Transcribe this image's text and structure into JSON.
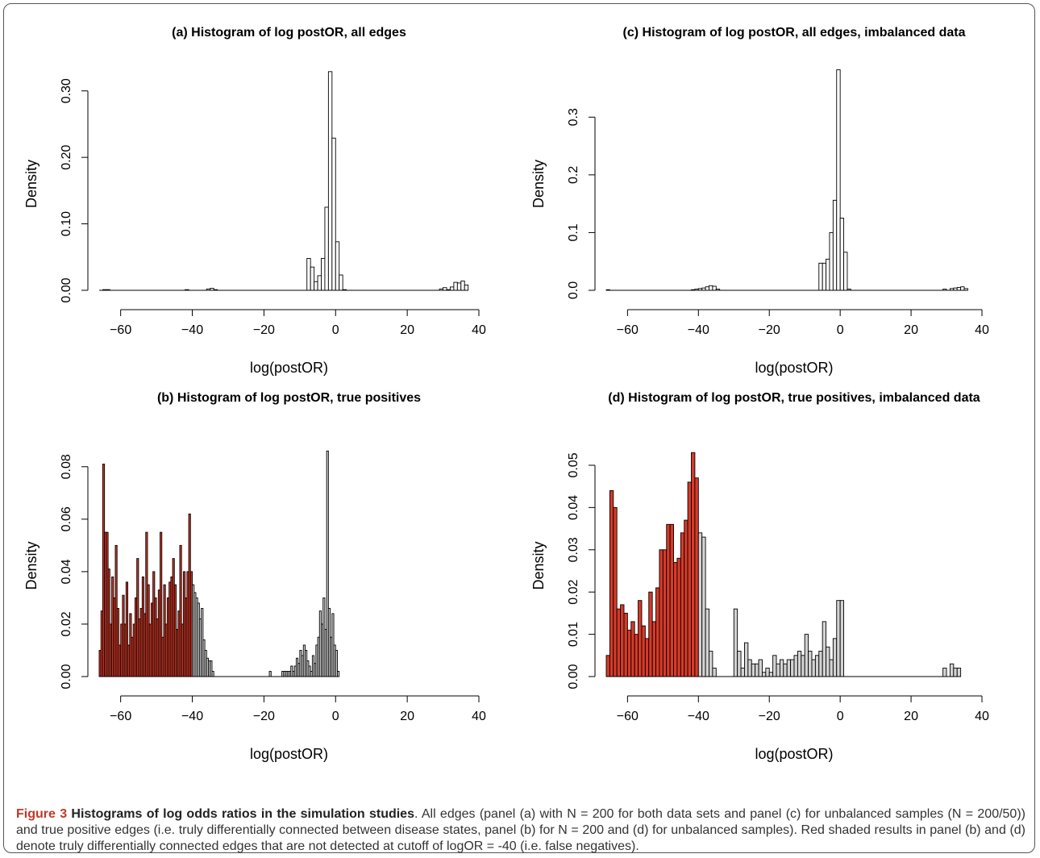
{
  "caption": {
    "label": "Figure 3",
    "title": "Histograms of log odds ratios in the simulation studies",
    "text": ". All edges (panel (a) with N = 200 for both data sets and panel (c) for unbalanced samples (N = 200/50)) and true positive edges (i.e. truly differentially connected between disease states, panel (b) for N = 200 and (d) for unbalanced samples). Red shaded results in panel (b) and (d) denote truly differentially connected edges that are not detected at cutoff of logOR = -40 (i.e. false negatives)."
  },
  "colors": {
    "red": "#d83a28",
    "grey": "#d3d3d3",
    "white": "#ffffff",
    "stroke": "#000000"
  },
  "chart_data": [
    {
      "id": "a",
      "type": "bar",
      "title": "(a) Histogram of log postOR, all edges",
      "xlabel": "log(postOR)",
      "ylabel": "Density",
      "xlim": [
        -66,
        40
      ],
      "ylim": [
        0,
        0.33
      ],
      "xticks": [
        "−60",
        "−40",
        "−20",
        "0",
        "20",
        "40"
      ],
      "xtick_values": [
        -60,
        -40,
        -20,
        0,
        20,
        40
      ],
      "yticks": [
        "0.00",
        "0.10",
        "0.20",
        "0.30"
      ],
      "ytick_values": [
        0,
        0.1,
        0.2,
        0.3
      ],
      "bin_width": 1,
      "bins": [
        {
          "x": -66,
          "y": 0
        },
        {
          "x": -65,
          "y": 0.001
        },
        {
          "x": -64,
          "y": 0.001
        },
        {
          "x": -42,
          "y": 0.001
        },
        {
          "x": -36,
          "y": 0.002
        },
        {
          "x": -35,
          "y": 0.003
        },
        {
          "x": -34,
          "y": 0.001
        },
        {
          "x": -8,
          "y": 0.048
        },
        {
          "x": -7,
          "y": 0.035
        },
        {
          "x": -6,
          "y": 0.013
        },
        {
          "x": -5,
          "y": 0.022
        },
        {
          "x": -4,
          "y": 0.048
        },
        {
          "x": -3,
          "y": 0.125
        },
        {
          "x": -2,
          "y": 0.329
        },
        {
          "x": -1,
          "y": 0.229
        },
        {
          "x": 0,
          "y": 0.073
        },
        {
          "x": 1,
          "y": 0.023
        },
        {
          "x": 2,
          "y": 0.001
        },
        {
          "x": 29,
          "y": 0.002
        },
        {
          "x": 30,
          "y": 0.004
        },
        {
          "x": 31,
          "y": 0.001
        },
        {
          "x": 32,
          "y": 0.005
        },
        {
          "x": 33,
          "y": 0.012
        },
        {
          "x": 34,
          "y": 0.011
        },
        {
          "x": 35,
          "y": 0.014
        },
        {
          "x": 36,
          "y": 0.008
        }
      ]
    },
    {
      "id": "c",
      "type": "bar",
      "title": "(c) Histogram of log postOR, all edges, imbalanced data",
      "xlabel": "log(postOR)",
      "ylabel": "Density",
      "xlim": [
        -66,
        40
      ],
      "ylim": [
        0,
        0.38
      ],
      "xticks": [
        "−60",
        "−40",
        "−20",
        "0",
        "20",
        "40"
      ],
      "xtick_values": [
        -60,
        -40,
        -20,
        0,
        20,
        40
      ],
      "yticks": [
        "0.0",
        "0.1",
        "0.2",
        "0.3"
      ],
      "ytick_values": [
        0,
        0.1,
        0.2,
        0.3
      ],
      "bin_width": 1,
      "bins": [
        {
          "x": -66,
          "y": 0.001
        },
        {
          "x": -42,
          "y": 0.001
        },
        {
          "x": -41,
          "y": 0.002
        },
        {
          "x": -40,
          "y": 0.003
        },
        {
          "x": -39,
          "y": 0.004
        },
        {
          "x": -38,
          "y": 0.006
        },
        {
          "x": -37,
          "y": 0.008
        },
        {
          "x": -36,
          "y": 0.007
        },
        {
          "x": -35,
          "y": 0.002
        },
        {
          "x": -6,
          "y": 0.047
        },
        {
          "x": -5,
          "y": 0.047
        },
        {
          "x": -4,
          "y": 0.054
        },
        {
          "x": -3,
          "y": 0.1
        },
        {
          "x": -2,
          "y": 0.156
        },
        {
          "x": -1,
          "y": 0.382
        },
        {
          "x": 0,
          "y": 0.125
        },
        {
          "x": 1,
          "y": 0.066
        },
        {
          "x": 2,
          "y": 0.002
        },
        {
          "x": 29,
          "y": 0.002
        },
        {
          "x": 31,
          "y": 0.003
        },
        {
          "x": 32,
          "y": 0.004
        },
        {
          "x": 33,
          "y": 0.005
        },
        {
          "x": 34,
          "y": 0.006
        },
        {
          "x": 35,
          "y": 0.003
        }
      ]
    },
    {
      "id": "b",
      "type": "bar",
      "title": "(b) Histogram of log postOR, true positives",
      "xlabel": "log(postOR)",
      "ylabel": "Density",
      "xlim": [
        -66,
        40
      ],
      "ylim": [
        0,
        0.087
      ],
      "xticks": [
        "−60",
        "−40",
        "−20",
        "0",
        "20",
        "40"
      ],
      "xtick_values": [
        -60,
        -40,
        -20,
        0,
        20,
        40
      ],
      "yticks": [
        "0.00",
        "0.02",
        "0.04",
        "0.06",
        "0.08"
      ],
      "ytick_values": [
        0,
        0.02,
        0.04,
        0.06,
        0.08
      ],
      "bin_width": 0.5,
      "red_cutoff": -40,
      "bins": [
        {
          "x": -66,
          "y": 0.01
        },
        {
          "x": -65.5,
          "y": 0.025
        },
        {
          "x": -65,
          "y": 0.081
        },
        {
          "x": -64.5,
          "y": 0.055
        },
        {
          "x": -64,
          "y": 0.055
        },
        {
          "x": -63.5,
          "y": 0.041
        },
        {
          "x": -63,
          "y": 0.02
        },
        {
          "x": -62.5,
          "y": 0.038
        },
        {
          "x": -62,
          "y": 0.03
        },
        {
          "x": -61.5,
          "y": 0.05
        },
        {
          "x": -61,
          "y": 0.026
        },
        {
          "x": -60.5,
          "y": 0.012
        },
        {
          "x": -60,
          "y": 0.02
        },
        {
          "x": -59.5,
          "y": 0.031
        },
        {
          "x": -59,
          "y": 0.02
        },
        {
          "x": -58.5,
          "y": 0.036
        },
        {
          "x": -58,
          "y": 0.012
        },
        {
          "x": -57.5,
          "y": 0.024
        },
        {
          "x": -57,
          "y": 0.015
        },
        {
          "x": -56.5,
          "y": 0.02
        },
        {
          "x": -56,
          "y": 0.03
        },
        {
          "x": -55.5,
          "y": 0.045
        },
        {
          "x": -55,
          "y": 0.022
        },
        {
          "x": -54.5,
          "y": 0.026
        },
        {
          "x": -54,
          "y": 0.038
        },
        {
          "x": -53.5,
          "y": 0.024
        },
        {
          "x": -53,
          "y": 0.055
        },
        {
          "x": -52.5,
          "y": 0.035
        },
        {
          "x": -52,
          "y": 0.02
        },
        {
          "x": -51.5,
          "y": 0.028
        },
        {
          "x": -51,
          "y": 0.04
        },
        {
          "x": -50.5,
          "y": 0.03
        },
        {
          "x": -50,
          "y": 0.022
        },
        {
          "x": -49.5,
          "y": 0.033
        },
        {
          "x": -49,
          "y": 0.055
        },
        {
          "x": -48.5,
          "y": 0.015
        },
        {
          "x": -48,
          "y": 0.035
        },
        {
          "x": -47.5,
          "y": 0.02
        },
        {
          "x": -47,
          "y": 0.03
        },
        {
          "x": -46.5,
          "y": 0.036
        },
        {
          "x": -46,
          "y": 0.038
        },
        {
          "x": -45.5,
          "y": 0.045
        },
        {
          "x": -45,
          "y": 0.035
        },
        {
          "x": -44.5,
          "y": 0.018
        },
        {
          "x": -44,
          "y": 0.025
        },
        {
          "x": -43.5,
          "y": 0.05
        },
        {
          "x": -43,
          "y": 0.02
        },
        {
          "x": -42.5,
          "y": 0.04
        },
        {
          "x": -42,
          "y": 0.03
        },
        {
          "x": -41.5,
          "y": 0.04
        },
        {
          "x": -41,
          "y": 0.062
        },
        {
          "x": -40.5,
          "y": 0.04
        },
        {
          "x": -40,
          "y": 0.035
        },
        {
          "x": -39.5,
          "y": 0.032
        },
        {
          "x": -39,
          "y": 0.03
        },
        {
          "x": -38.5,
          "y": 0.028
        },
        {
          "x": -38,
          "y": 0.022
        },
        {
          "x": -37.5,
          "y": 0.026
        },
        {
          "x": -37,
          "y": 0.014
        },
        {
          "x": -36.5,
          "y": 0.01
        },
        {
          "x": -36,
          "y": 0.007
        },
        {
          "x": -35.5,
          "y": 0.006
        },
        {
          "x": -35,
          "y": 0.006
        },
        {
          "x": -34.5,
          "y": 0.002
        },
        {
          "x": -18.5,
          "y": 0.002
        },
        {
          "x": -15,
          "y": 0.002
        },
        {
          "x": -14.5,
          "y": 0.002
        },
        {
          "x": -14,
          "y": 0.002
        },
        {
          "x": -13.5,
          "y": 0.002
        },
        {
          "x": -13,
          "y": 0.002
        },
        {
          "x": -12.5,
          "y": 0.004
        },
        {
          "x": -12,
          "y": 0.002
        },
        {
          "x": -11.5,
          "y": 0.004
        },
        {
          "x": -11,
          "y": 0.007
        },
        {
          "x": -10.5,
          "y": 0.005
        },
        {
          "x": -10,
          "y": 0.01
        },
        {
          "x": -9.5,
          "y": 0.008
        },
        {
          "x": -9,
          "y": 0.012
        },
        {
          "x": -8.5,
          "y": 0.01
        },
        {
          "x": -8,
          "y": 0.006
        },
        {
          "x": -7.5,
          "y": 0.004
        },
        {
          "x": -7,
          "y": 0.002
        },
        {
          "x": -6.5,
          "y": 0.008
        },
        {
          "x": -6,
          "y": 0.005
        },
        {
          "x": -5.5,
          "y": 0.012
        },
        {
          "x": -5,
          "y": 0.015
        },
        {
          "x": -4.5,
          "y": 0.025
        },
        {
          "x": -4,
          "y": 0.02
        },
        {
          "x": -3.5,
          "y": 0.03
        },
        {
          "x": -3,
          "y": 0.018
        },
        {
          "x": -2.5,
          "y": 0.086
        },
        {
          "x": -2,
          "y": 0.026
        },
        {
          "x": -1.5,
          "y": 0.015
        },
        {
          "x": -1,
          "y": 0.024
        },
        {
          "x": -0.5,
          "y": 0.012
        },
        {
          "x": 0,
          "y": 0.01
        },
        {
          "x": 0.5,
          "y": 0.002
        }
      ]
    },
    {
      "id": "d",
      "type": "bar",
      "title": "(d) Histogram of log postOR, true positives, imbalanced data",
      "xlabel": "log(postOR)",
      "ylabel": "Density",
      "xlim": [
        -66,
        40
      ],
      "ylim": [
        0,
        0.054
      ],
      "xticks": [
        "−60",
        "−40",
        "−20",
        "0",
        "20",
        "40"
      ],
      "xtick_values": [
        -60,
        -40,
        -20,
        0,
        20,
        40
      ],
      "yticks": [
        "0.00",
        "0.01",
        "0.02",
        "0.03",
        "0.04",
        "0.05"
      ],
      "ytick_values": [
        0,
        0.01,
        0.02,
        0.03,
        0.04,
        0.05
      ],
      "bin_width": 1,
      "red_cutoff": -40,
      "bins": [
        {
          "x": -66,
          "y": 0.005
        },
        {
          "x": -65,
          "y": 0.044
        },
        {
          "x": -64,
          "y": 0.04
        },
        {
          "x": -63,
          "y": 0.016
        },
        {
          "x": -62,
          "y": 0.017
        },
        {
          "x": -61,
          "y": 0.015
        },
        {
          "x": -60,
          "y": 0.011
        },
        {
          "x": -59,
          "y": 0.013
        },
        {
          "x": -58,
          "y": 0.01
        },
        {
          "x": -57,
          "y": 0.018
        },
        {
          "x": -56,
          "y": 0.012
        },
        {
          "x": -55,
          "y": 0.009
        },
        {
          "x": -54,
          "y": 0.02
        },
        {
          "x": -53,
          "y": 0.013
        },
        {
          "x": -52,
          "y": 0.021
        },
        {
          "x": -51,
          "y": 0.03
        },
        {
          "x": -50,
          "y": 0.03
        },
        {
          "x": -49,
          "y": 0.036
        },
        {
          "x": -48,
          "y": 0.036
        },
        {
          "x": -47,
          "y": 0.027
        },
        {
          "x": -46,
          "y": 0.028
        },
        {
          "x": -45,
          "y": 0.034
        },
        {
          "x": -44,
          "y": 0.037
        },
        {
          "x": -43,
          "y": 0.046
        },
        {
          "x": -42,
          "y": 0.053
        },
        {
          "x": -41,
          "y": 0.047
        },
        {
          "x": -40,
          "y": 0.034
        },
        {
          "x": -39,
          "y": 0.033
        },
        {
          "x": -38,
          "y": 0.016
        },
        {
          "x": -37,
          "y": 0.006
        },
        {
          "x": -36,
          "y": 0.002
        },
        {
          "x": -30,
          "y": 0.016
        },
        {
          "x": -29,
          "y": 0.006
        },
        {
          "x": -28,
          "y": 0.002
        },
        {
          "x": -27,
          "y": 0.008
        },
        {
          "x": -26,
          "y": 0.004
        },
        {
          "x": -25,
          "y": 0.003
        },
        {
          "x": -24,
          "y": 0.003
        },
        {
          "x": -23,
          "y": 0.004
        },
        {
          "x": -22,
          "y": 0.001
        },
        {
          "x": -21,
          "y": 0.002
        },
        {
          "x": -20,
          "y": 0.001
        },
        {
          "x": -19,
          "y": 0.005
        },
        {
          "x": -18,
          "y": 0.003
        },
        {
          "x": -17,
          "y": 0.004
        },
        {
          "x": -16,
          "y": 0.003
        },
        {
          "x": -15,
          "y": 0.004
        },
        {
          "x": -14,
          "y": 0.004
        },
        {
          "x": -13,
          "y": 0.005
        },
        {
          "x": -12,
          "y": 0.006
        },
        {
          "x": -11,
          "y": 0.005
        },
        {
          "x": -10,
          "y": 0.01
        },
        {
          "x": -9,
          "y": 0.006
        },
        {
          "x": -8,
          "y": 0.004
        },
        {
          "x": -7,
          "y": 0.005
        },
        {
          "x": -6,
          "y": 0.006
        },
        {
          "x": -5,
          "y": 0.013
        },
        {
          "x": -4,
          "y": 0.007
        },
        {
          "x": -3,
          "y": 0.004
        },
        {
          "x": -2,
          "y": 0.009
        },
        {
          "x": -1,
          "y": 0.018
        },
        {
          "x": 0,
          "y": 0.018
        },
        {
          "x": 29,
          "y": 0.002
        },
        {
          "x": 31,
          "y": 0.003
        },
        {
          "x": 32,
          "y": 0.002
        },
        {
          "x": 33,
          "y": 0.002
        }
      ]
    }
  ]
}
